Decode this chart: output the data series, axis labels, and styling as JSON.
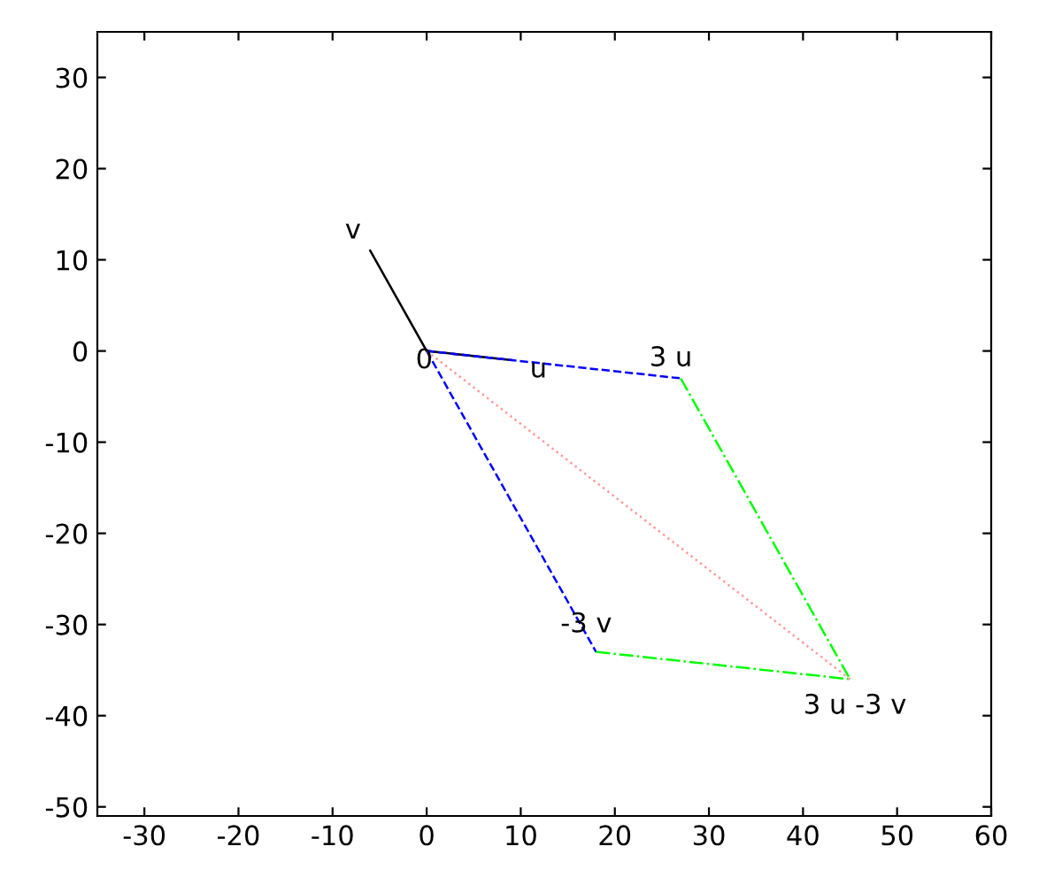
{
  "chart_data": {
    "type": "line",
    "xlim": [
      -35,
      60
    ],
    "ylim": [
      -51,
      35
    ],
    "xticks": [
      -30,
      -20,
      -10,
      0,
      10,
      20,
      30,
      40,
      50,
      60
    ],
    "yticks": [
      -50,
      -40,
      -30,
      -20,
      -10,
      0,
      10,
      20,
      30
    ],
    "grid": false,
    "legend": false,
    "marker": "none",
    "series": [
      {
        "color": "#000000",
        "line_style": "solid",
        "x": [
          0,
          9
        ],
        "values": [
          0,
          -1
        ]
      },
      {
        "color": "#000000",
        "line_style": "solid",
        "x": [
          0,
          -6
        ],
        "values": [
          0,
          11
        ]
      },
      {
        "color": "#0000ff",
        "line_style": "dashed",
        "x": [
          0,
          27
        ],
        "values": [
          0,
          -3
        ]
      },
      {
        "color": "#0000ff",
        "line_style": "dashed",
        "x": [
          0,
          18
        ],
        "values": [
          0,
          -33
        ]
      },
      {
        "color": "#00ff00",
        "line_style": "dashdot",
        "x": [
          27,
          45
        ],
        "values": [
          -3,
          -36
        ]
      },
      {
        "color": "#00ff00",
        "line_style": "dashdot",
        "x": [
          18,
          45
        ],
        "values": [
          -33,
          -36
        ]
      },
      {
        "color": "#ff9999",
        "line_style": "dotted",
        "x": [
          0,
          45
        ],
        "values": [
          0,
          -36
        ]
      }
    ],
    "annotations": [
      {
        "text": "v",
        "x": -6,
        "y": 11
      },
      {
        "text": "0",
        "x": 0,
        "y": 0
      },
      {
        "text": "u",
        "x": 9,
        "y": -1
      },
      {
        "text": "3 u",
        "x": 27,
        "y": -3
      },
      {
        "text": "-3 v",
        "x": 18,
        "y": -33
      },
      {
        "text": "3 u -3 v",
        "x": 45,
        "y": -36
      }
    ]
  }
}
